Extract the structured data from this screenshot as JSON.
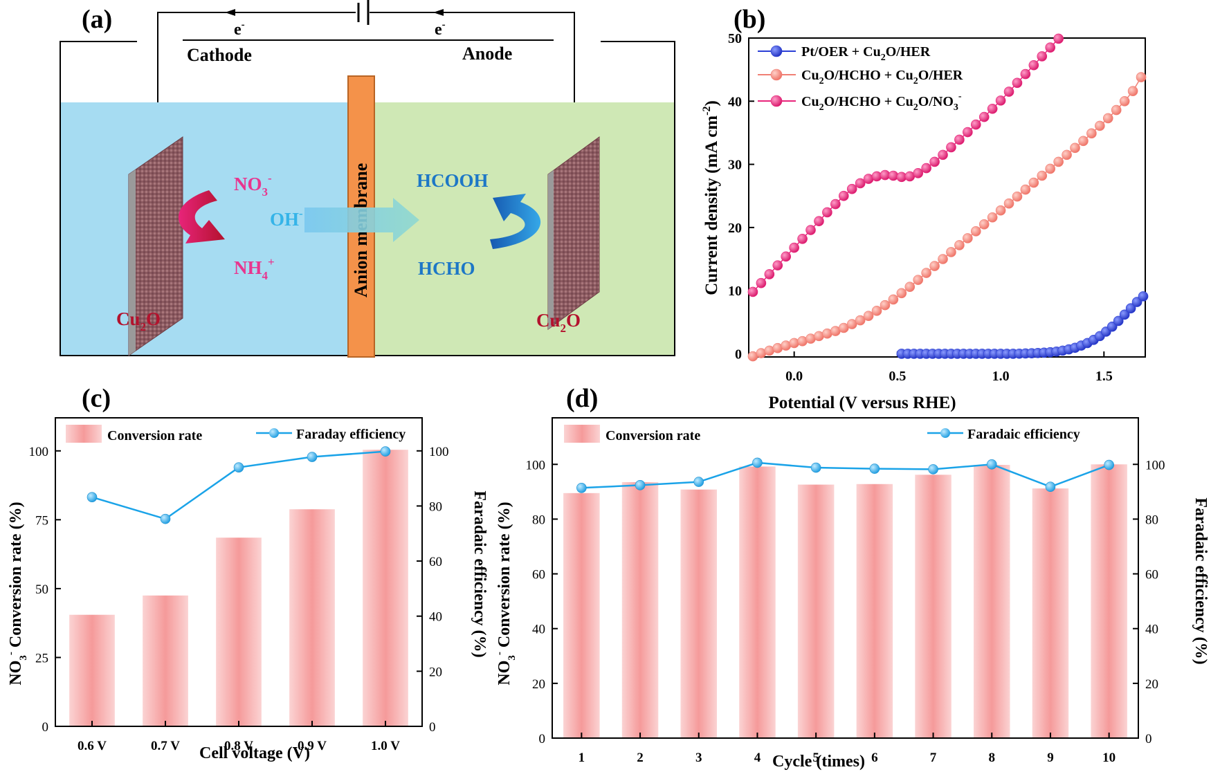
{
  "colors": {
    "cathode_bg": "#a6dcf2",
    "anode_bg": "#cfe8b5",
    "membrane": "#f4924a",
    "red_label": "#b3122d",
    "pink_label": "#e8358e",
    "blue_label": "#1d77c6",
    "oh_label": "#35b4e8",
    "blue_series": "#2a3fd6",
    "salmon_series": "#f07f74",
    "magenta_series": "#e8247a",
    "bar_fill": "#f7a1a1",
    "line_blue": "#1aa3e8"
  },
  "panel_a": {
    "label": "(a)",
    "e_left": "e",
    "e_right": "e",
    "e_sup": "-",
    "cathode": "Cathode",
    "anode": "Anode",
    "membrane": "Anion membrane",
    "no3": "NO",
    "no3_sub": "3",
    "no3_sup": "-",
    "nh4": "NH",
    "nh4_sub": "4",
    "nh4_sup": "+",
    "oh": "OH",
    "oh_sup": "-",
    "hcooh": "HCOOH",
    "hcho": "HCHO",
    "cu2o_left": "Cu",
    "cu2o_right": "Cu",
    "cu2o_sub": "2",
    "cu2o_o": "O"
  },
  "chart_data": [
    {
      "id": "b",
      "panel_label": "(b)",
      "type": "scatter",
      "xlabel": "Potential (V versus RHE)",
      "ylabel": "Current density (mA cm",
      "ylabel_sup": "-2",
      "ylabel_close": ")",
      "xlim": [
        -0.22,
        1.7
      ],
      "ylim": [
        -0.5,
        50
      ],
      "xticks": [
        0.0,
        0.5,
        1.0,
        1.5
      ],
      "xtick_labels": [
        "0.0",
        "0.5",
        "1.0",
        "1.5"
      ],
      "yticks": [
        0,
        10,
        20,
        30,
        40,
        50
      ],
      "ytick_labels": [
        "0",
        "10",
        "20",
        "30",
        "40",
        "50"
      ],
      "legend_position": "top-left",
      "series": [
        {
          "name": "Pt/OER + Cu2O/HER",
          "legend_parts": [
            "Pt/OER + Cu",
            "2",
            "O/HER"
          ],
          "color": "#2a3fd6",
          "x": [
            0.52,
            0.55,
            0.58,
            0.61,
            0.64,
            0.67,
            0.7,
            0.73,
            0.76,
            0.79,
            0.82,
            0.85,
            0.88,
            0.91,
            0.94,
            0.97,
            1.0,
            1.03,
            1.06,
            1.09,
            1.12,
            1.15,
            1.18,
            1.21,
            1.24,
            1.27,
            1.3,
            1.33,
            1.36,
            1.39,
            1.42,
            1.45,
            1.48,
            1.51,
            1.54,
            1.57,
            1.6,
            1.63,
            1.66,
            1.69
          ],
          "y": [
            0,
            0,
            0,
            0,
            0,
            0,
            0,
            0,
            0,
            0,
            0,
            0,
            0,
            0,
            0,
            0,
            0,
            0,
            0,
            0.02,
            0.05,
            0.08,
            0.12,
            0.18,
            0.25,
            0.35,
            0.5,
            0.7,
            0.95,
            1.3,
            1.7,
            2.2,
            2.8,
            3.5,
            4.3,
            5.2,
            6.2,
            7.2,
            8.2,
            9.1
          ]
        },
        {
          "name": "Cu2O/HCHO + Cu2O/HER",
          "legend_parts": [
            "Cu",
            "2",
            "O/HCHO + Cu",
            "2",
            "O/HER"
          ],
          "color": "#f07f74",
          "x": [
            -0.2,
            -0.16,
            -0.12,
            -0.08,
            -0.04,
            0.0,
            0.04,
            0.08,
            0.12,
            0.16,
            0.2,
            0.24,
            0.28,
            0.32,
            0.36,
            0.4,
            0.44,
            0.48,
            0.52,
            0.56,
            0.6,
            0.64,
            0.68,
            0.72,
            0.76,
            0.8,
            0.84,
            0.88,
            0.92,
            0.96,
            1.0,
            1.04,
            1.08,
            1.12,
            1.16,
            1.2,
            1.24,
            1.28,
            1.32,
            1.36,
            1.4,
            1.44,
            1.48,
            1.52,
            1.56,
            1.6,
            1.64,
            1.68
          ],
          "y": [
            -0.4,
            0.1,
            0.5,
            0.9,
            1.3,
            1.7,
            2.0,
            2.4,
            2.8,
            3.2,
            3.6,
            4.1,
            4.7,
            5.3,
            6.0,
            6.8,
            7.7,
            8.6,
            9.6,
            10.6,
            11.7,
            12.8,
            13.9,
            15.0,
            16.1,
            17.2,
            18.3,
            19.4,
            20.5,
            21.6,
            22.7,
            23.8,
            24.9,
            26.0,
            27.1,
            28.2,
            29.3,
            30.4,
            31.5,
            32.6,
            33.7,
            34.9,
            36.1,
            37.3,
            38.6,
            40.0,
            41.6,
            43.8
          ]
        },
        {
          "name": "Cu2O/HCHO + Cu2O/NO3-",
          "legend_parts": [
            "Cu",
            "2",
            "O/HCHO + Cu",
            "2",
            "O/NO",
            "3",
            "-"
          ],
          "color": "#e8247a",
          "x": [
            -0.2,
            -0.16,
            -0.12,
            -0.08,
            -0.04,
            0.0,
            0.04,
            0.08,
            0.12,
            0.16,
            0.2,
            0.24,
            0.28,
            0.32,
            0.36,
            0.4,
            0.44,
            0.48,
            0.52,
            0.56,
            0.6,
            0.64,
            0.68,
            0.72,
            0.76,
            0.8,
            0.84,
            0.88,
            0.92,
            0.96,
            1.0,
            1.04,
            1.08,
            1.12,
            1.16,
            1.2,
            1.24,
            1.28
          ],
          "y": [
            9.8,
            11.2,
            12.6,
            14.0,
            15.4,
            16.8,
            18.2,
            19.6,
            21.0,
            22.4,
            23.7,
            25.0,
            26.1,
            27.0,
            27.7,
            28.1,
            28.3,
            28.2,
            28.0,
            28.1,
            28.6,
            29.4,
            30.4,
            31.5,
            32.7,
            33.9,
            35.1,
            36.3,
            37.5,
            38.8,
            40.1,
            41.5,
            42.9,
            44.3,
            45.7,
            47.1,
            48.5,
            49.9
          ]
        }
      ]
    },
    {
      "id": "c",
      "panel_label": "(c)",
      "type": "bar",
      "xlabel": "Cell voltage (V)",
      "ylabel_parts": [
        "NO",
        "3",
        "-",
        " Conversion rate (%)"
      ],
      "y2label": "Faradaic efficiency (%)",
      "categories": [
        "0.6 V",
        "0.7 V",
        "0.8 V",
        "0.9 V",
        "1.0 V"
      ],
      "ylim": [
        0,
        112
      ],
      "yticks": [
        0,
        25,
        50,
        75,
        100
      ],
      "ytick_labels": [
        "0",
        "25",
        "50",
        "75",
        "100"
      ],
      "y2lim": [
        0,
        112
      ],
      "y2ticks": [
        0,
        20,
        40,
        60,
        80,
        100
      ],
      "y2tick_labels": [
        "0",
        "20",
        "40",
        "60",
        "80",
        "100"
      ],
      "legend_position": "top",
      "series": [
        {
          "name": "Conversion rate",
          "kind": "bar",
          "axis": "left",
          "values": [
            40.5,
            47.5,
            68.5,
            78.8,
            100.4
          ]
        },
        {
          "name": "Faraday efficiency",
          "kind": "line",
          "axis": "right",
          "values": [
            83.2,
            75.3,
            94.0,
            97.8,
            99.8
          ]
        }
      ]
    },
    {
      "id": "d",
      "panel_label": "(d)",
      "type": "bar",
      "xlabel": "Cycle (times)",
      "ylabel_parts": [
        "NO",
        "3",
        "-",
        " Conversion rate (%)"
      ],
      "y2label": "Faradaic efficiency (%)",
      "categories": [
        "1",
        "2",
        "3",
        "4",
        "5",
        "6",
        "7",
        "8",
        "9",
        "10"
      ],
      "ylim": [
        0,
        117
      ],
      "yticks": [
        0,
        20,
        40,
        60,
        80,
        100
      ],
      "ytick_labels": [
        "0",
        "20",
        "40",
        "60",
        "80",
        "100"
      ],
      "y2lim": [
        0,
        117
      ],
      "y2ticks": [
        0,
        20,
        40,
        60,
        80,
        100
      ],
      "y2tick_labels": [
        "0",
        "20",
        "40",
        "60",
        "80",
        "100"
      ],
      "legend_position": "top",
      "series": [
        {
          "name": "Conversion rate",
          "kind": "bar",
          "axis": "left",
          "values": [
            89.5,
            93.5,
            90.8,
            99.2,
            92.6,
            92.8,
            96.2,
            99.8,
            91.2,
            100.0
          ]
        },
        {
          "name": "Faradaic efficiency",
          "kind": "line",
          "axis": "right",
          "values": [
            91.4,
            92.4,
            93.6,
            100.6,
            98.8,
            98.4,
            98.2,
            100.0,
            91.8,
            99.8
          ]
        }
      ]
    }
  ]
}
